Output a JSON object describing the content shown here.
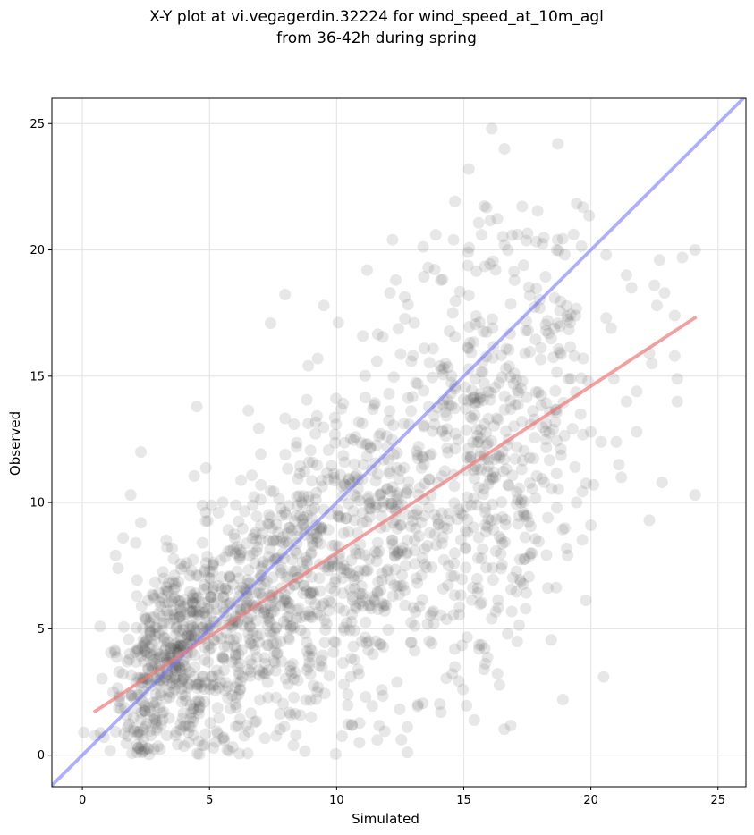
{
  "chart_data": {
    "type": "scatter",
    "title_lines": [
      "X-Y plot at vi.vegagerdin.32224 for wind_speed_at_10m_agl",
      "from 36-42h during spring"
    ],
    "xlabel": "Simulated",
    "ylabel": "Observed",
    "xlim": [
      -1.2,
      26.1
    ],
    "ylim": [
      -1.25,
      26.0
    ],
    "x_ticks": [
      0,
      5,
      10,
      15,
      20,
      25
    ],
    "y_ticks": [
      0,
      5,
      10,
      15,
      20,
      25
    ],
    "grid": true,
    "legend": "none",
    "points_note_count": 1800,
    "scatter_color": "#444444",
    "scatter_alpha": 0.13,
    "identity_line": {
      "x": [
        -1.2,
        26.1
      ],
      "y": [
        -1.2,
        26.1
      ],
      "color": "#6b6bff"
    },
    "fit_line": {
      "x": [
        0.45,
        24.15
      ],
      "y": [
        1.7,
        17.35
      ],
      "color": "#f07878"
    },
    "outlier_points": [
      {
        "x": 16.1,
        "y": 24.8
      },
      {
        "x": 16.6,
        "y": 24.0
      },
      {
        "x": 18.7,
        "y": 24.2
      },
      {
        "x": 15.2,
        "y": 23.2
      },
      {
        "x": 12.2,
        "y": 20.4
      },
      {
        "x": 13.9,
        "y": 20.6
      },
      {
        "x": 14.6,
        "y": 20.4
      },
      {
        "x": 15.7,
        "y": 20.6
      },
      {
        "x": 16.6,
        "y": 20.2
      },
      {
        "x": 11.2,
        "y": 19.2
      },
      {
        "x": 13.6,
        "y": 19.3
      },
      {
        "x": 14.1,
        "y": 18.8
      },
      {
        "x": 12.1,
        "y": 18.3
      },
      {
        "x": 15.2,
        "y": 18.2
      },
      {
        "x": 17.0,
        "y": 18.8
      },
      {
        "x": 17.6,
        "y": 18.2
      },
      {
        "x": 20.6,
        "y": 19.8
      },
      {
        "x": 21.4,
        "y": 19.0
      },
      {
        "x": 22.7,
        "y": 19.6
      },
      {
        "x": 23.6,
        "y": 19.7
      },
      {
        "x": 24.1,
        "y": 20.0
      },
      {
        "x": 21.6,
        "y": 18.5
      },
      {
        "x": 22.5,
        "y": 18.6
      },
      {
        "x": 22.9,
        "y": 18.3
      },
      {
        "x": 22.6,
        "y": 17.8
      },
      {
        "x": 23.3,
        "y": 17.4
      },
      {
        "x": 20.6,
        "y": 17.3
      },
      {
        "x": 20.8,
        "y": 16.9
      },
      {
        "x": 19.4,
        "y": 17.4
      },
      {
        "x": 18.3,
        "y": 17.2
      },
      {
        "x": 18.7,
        "y": 17.1
      },
      {
        "x": 9.5,
        "y": 17.8
      },
      {
        "x": 7.4,
        "y": 17.1
      },
      {
        "x": 19.6,
        "y": 13.5
      },
      {
        "x": 20.0,
        "y": 12.8
      },
      {
        "x": 20.4,
        "y": 12.4
      },
      {
        "x": 20.1,
        "y": 10.7
      },
      {
        "x": 21.0,
        "y": 12.4
      },
      {
        "x": 21.1,
        "y": 11.5
      },
      {
        "x": 21.2,
        "y": 11.0
      },
      {
        "x": 22.8,
        "y": 10.8
      },
      {
        "x": 24.1,
        "y": 10.3
      },
      {
        "x": 22.3,
        "y": 9.3
      },
      {
        "x": 20.0,
        "y": 9.1
      },
      {
        "x": 21.8,
        "y": 12.8
      },
      {
        "x": 22.3,
        "y": 15.9
      },
      {
        "x": 22.4,
        "y": 15.5
      },
      {
        "x": 23.3,
        "y": 15.8
      },
      {
        "x": 23.4,
        "y": 14.9
      },
      {
        "x": 23.4,
        "y": 14.0
      },
      {
        "x": 21.4,
        "y": 14.0
      },
      {
        "x": 21.8,
        "y": 14.4
      },
      {
        "x": 20.9,
        "y": 14.9
      },
      {
        "x": 19.7,
        "y": 15.7
      },
      {
        "x": 18.9,
        "y": 2.2
      },
      {
        "x": 20.5,
        "y": 3.1
      },
      {
        "x": 17.1,
        "y": 4.5
      },
      {
        "x": 15.8,
        "y": 3.4
      },
      {
        "x": 14.1,
        "y": 1.7
      },
      {
        "x": 13.2,
        "y": 2.0
      },
      {
        "x": 11.6,
        "y": 0.6
      },
      {
        "x": 10.9,
        "y": 0.5
      },
      {
        "x": 10.6,
        "y": 1.2
      },
      {
        "x": 8.4,
        "y": 0.8
      },
      {
        "x": 9.0,
        "y": 1.5
      },
      {
        "x": 4.5,
        "y": 13.8
      },
      {
        "x": 2.3,
        "y": 12.0
      },
      {
        "x": 1.9,
        "y": 10.3
      },
      {
        "x": 2.3,
        "y": 9.2
      },
      {
        "x": 1.3,
        "y": 7.9
      },
      {
        "x": 1.4,
        "y": 7.4
      },
      {
        "x": 0.7,
        "y": 5.1
      },
      {
        "x": 1.6,
        "y": 8.6
      },
      {
        "x": 2.1,
        "y": 8.4
      }
    ]
  }
}
